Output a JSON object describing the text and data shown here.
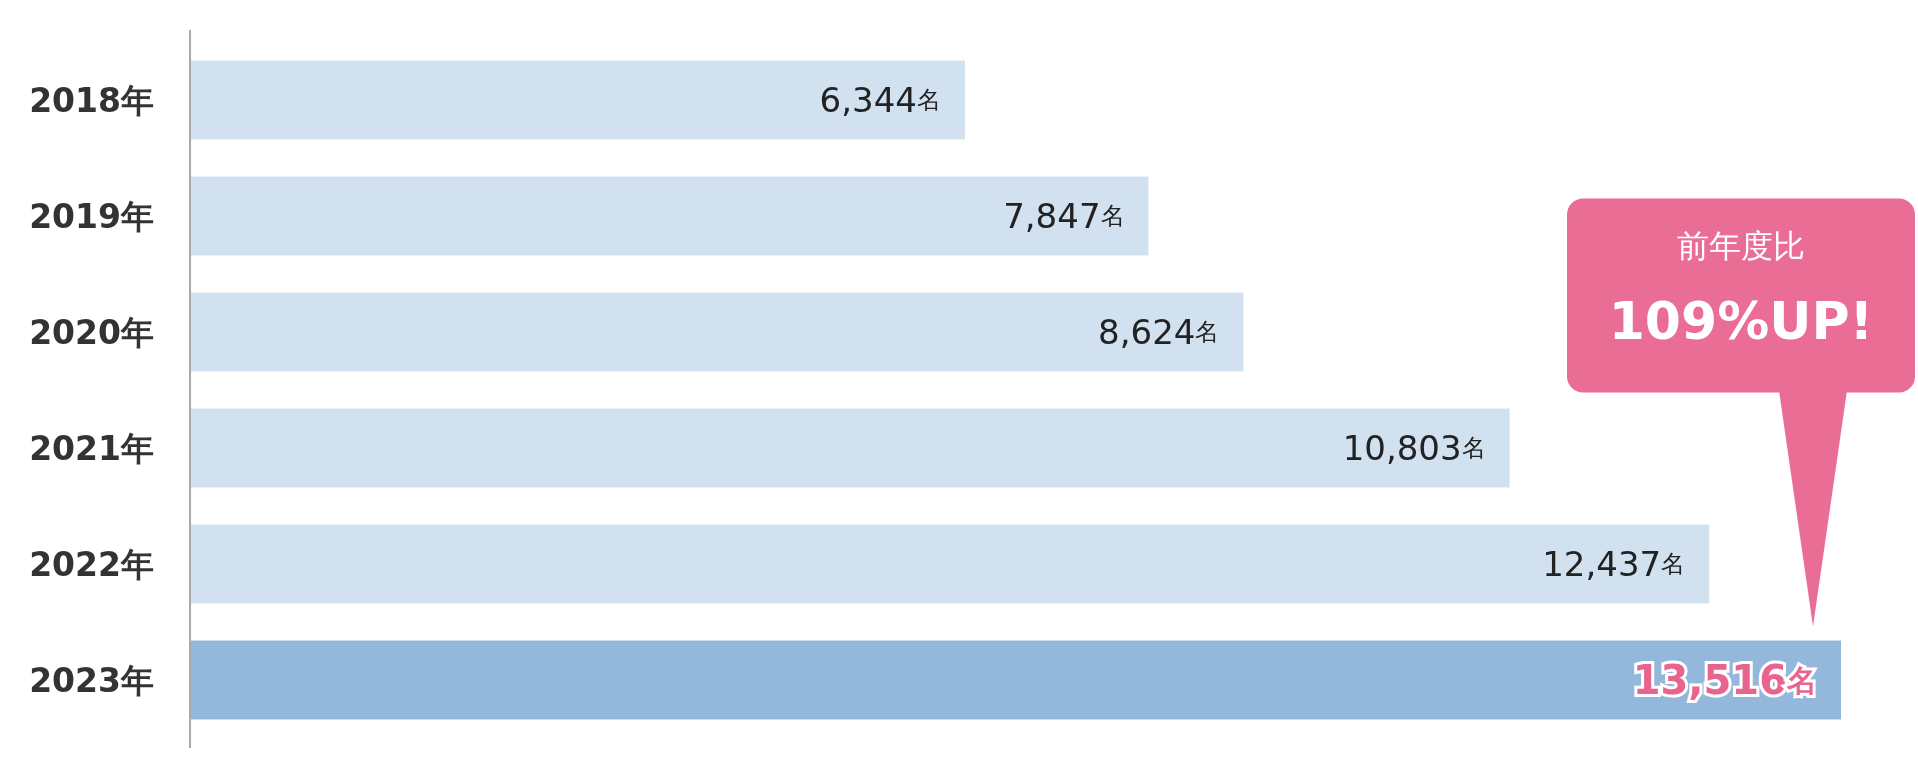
{
  "chart_data": {
    "type": "bar",
    "orientation": "horizontal",
    "categories": [
      "2018年",
      "2019年",
      "2020年",
      "2021年",
      "2022年",
      "2023年"
    ],
    "values": [
      6344,
      7847,
      8624,
      10803,
      12437,
      13516
    ],
    "value_labels": [
      "6,344名",
      "7,847名",
      "8,624名",
      "10,803名",
      "12,437名",
      "13,516名"
    ],
    "colors": [
      "#d2e1f0",
      "#d2e1f0",
      "#d2e1f0",
      "#d2e1f0",
      "#d2e1f0",
      "#93b8dc"
    ],
    "annotations": [
      "前年度比\n109%UP!"
    ]
  }
}
